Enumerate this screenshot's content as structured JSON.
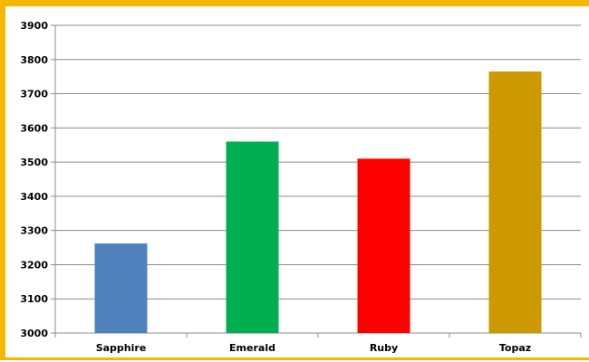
{
  "chart_data": {
    "type": "bar",
    "title": "",
    "xlabel": "",
    "ylabel": "",
    "categories": [
      "Sapphire",
      "Emerald",
      "Ruby",
      "Topaz"
    ],
    "values": [
      3262,
      3560,
      3510,
      3765
    ],
    "colors": [
      "#4f81bd",
      "#00b050",
      "#ff0000",
      "#cc9900"
    ],
    "ylim": [
      3000,
      3900
    ],
    "yticks": [
      "3000",
      "3100",
      "3200",
      "3300",
      "3400",
      "3500",
      "3600",
      "3700",
      "3800",
      "3900"
    ],
    "grid": true,
    "legend": "none"
  },
  "style": {
    "frame_color": "#f5b800",
    "grid_color": "#8c8c8c",
    "axis_color": "#8c8c8c"
  }
}
